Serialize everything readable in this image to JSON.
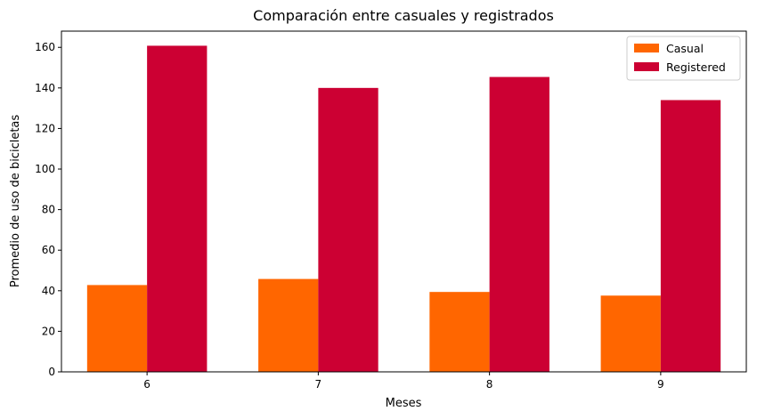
{
  "chart_data": {
    "type": "bar",
    "title": "Comparación entre casuales y registrados",
    "xlabel": "Meses",
    "ylabel": "Promedio de uso de bicicletas",
    "categories": [
      "6",
      "7",
      "8",
      "9"
    ],
    "ylim": [
      0,
      168
    ],
    "yticks": [
      0,
      20,
      40,
      60,
      80,
      100,
      120,
      140,
      160
    ],
    "grid": false,
    "legend_position": "top-right",
    "series": [
      {
        "name": "Casual",
        "color": "#ff6600",
        "values": [
          42.8,
          45.8,
          39.4,
          37.6
        ]
      },
      {
        "name": "Registered",
        "color": "#cc0033",
        "values": [
          160.8,
          140.0,
          145.4,
          134.0
        ]
      }
    ]
  }
}
